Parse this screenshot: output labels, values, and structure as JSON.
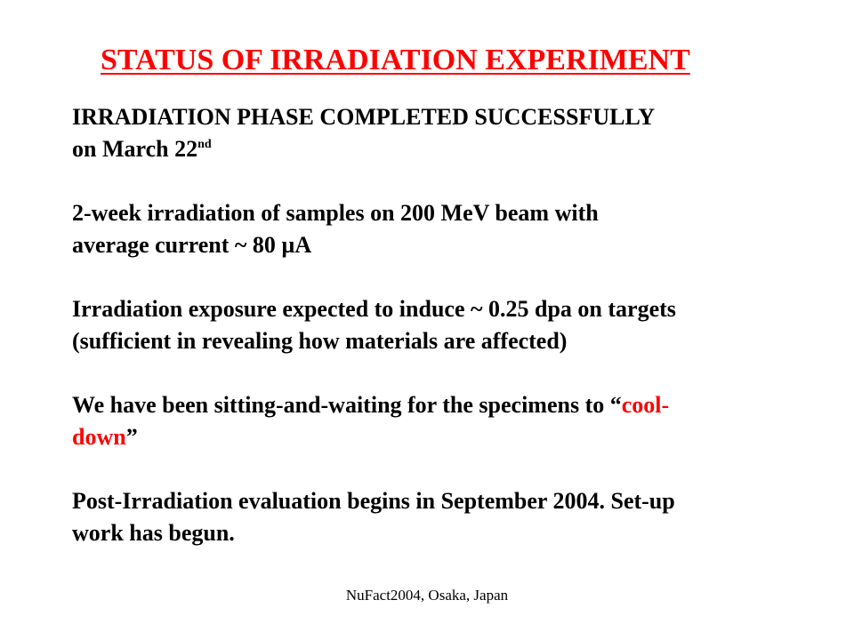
{
  "title": "STATUS OF IRRADIATION  EXPERIMENT",
  "colors": {
    "title": "#ff0000",
    "accent": "#ff0000",
    "text": "#000000",
    "background": "#ffffff"
  },
  "paragraphs": {
    "p1": {
      "line1": "IRRADIATION  PHASE COMPLETED SUCCESSFULLY",
      "line2_text": "on March 22",
      "line2_sup": "nd"
    },
    "p2": {
      "line1": "2-week irradiation of samples on 200 MeV beam with",
      "line2": "average current ~ 80 µA"
    },
    "p3": {
      "line1": "Irradiation exposure expected to induce ~ 0.25 dpa on targets",
      "line2": "(sufficient in revealing how materials are affected)"
    },
    "p4": {
      "line1_text": "We have been sitting-and-waiting for the specimens to “",
      "line1_accent": "cool-",
      "line2_accent": "down",
      "line2_text": "”"
    },
    "p5": {
      "line1": "Post-Irradiation evaluation begins in September 2004. Set-up",
      "line2": "work has begun."
    }
  },
  "footer": "NuFact2004, Osaka, Japan"
}
